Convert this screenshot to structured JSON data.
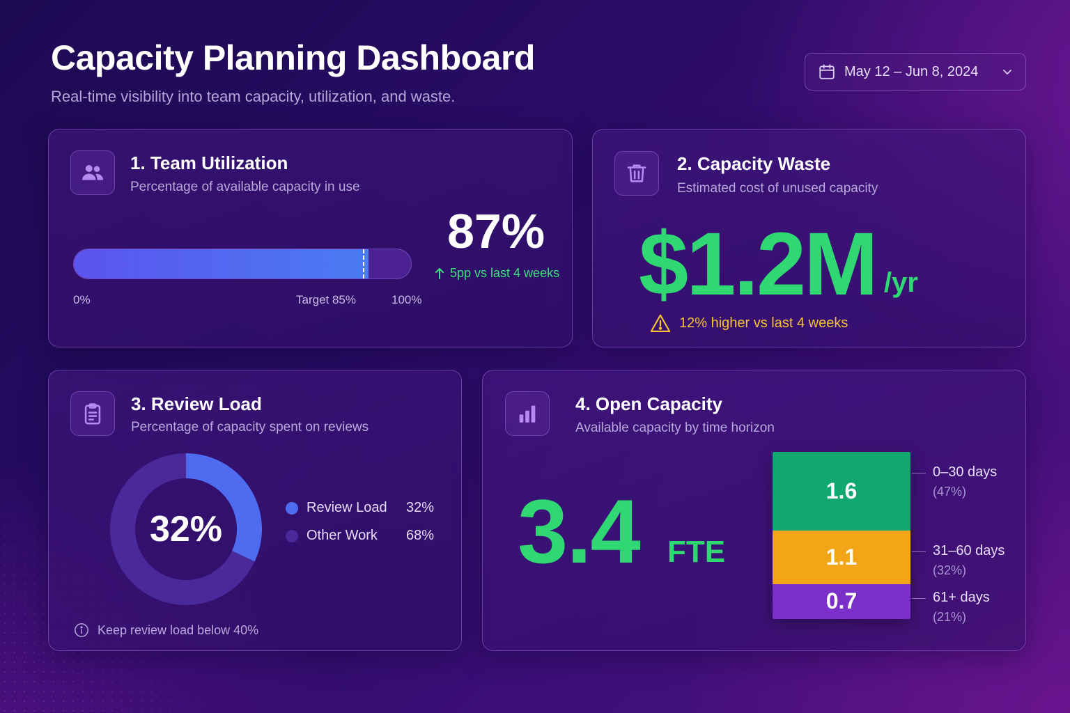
{
  "header": {
    "title": "Capacity Planning Dashboard",
    "subtitle": "Real-time visibility into team capacity, utilization, and waste.",
    "date_range": "May 12 – Jun 8, 2024"
  },
  "cards": {
    "utilization": {
      "title": "1. Team Utilization",
      "subtitle": "Percentage of available capacity in use",
      "value": "87%",
      "fill_fraction": 0.87,
      "target_fraction": 0.85,
      "axis_start": "0%",
      "axis_target": "Target 85%",
      "axis_end": "100%",
      "trend": "5pp vs last 4 weeks",
      "trend_color": "#3ee07c"
    },
    "waste": {
      "title": "2. Capacity Waste",
      "subtitle": "Estimated cost of unused capacity",
      "value": "$1.2M",
      "unit": "/yr",
      "warning": "12% higher vs last 4 weeks",
      "value_color": "#2fd873",
      "warning_color": "#f5c234"
    },
    "review": {
      "title": "3. Review Load",
      "subtitle": "Percentage of capacity spent on reviews",
      "center_value": "32%",
      "legend": [
        {
          "name": "Review Load",
          "value": "32%",
          "fraction": 0.32,
          "color": "#4f6cf0"
        },
        {
          "name": "Other Work",
          "value": "68%",
          "fraction": 0.68,
          "color": "#4a2a9a"
        }
      ],
      "note": "Keep review load below 40%"
    },
    "open_capacity": {
      "title": "4. Open Capacity",
      "subtitle": "Available capacity by time horizon",
      "value": "3.4",
      "unit": "FTE",
      "segments": [
        {
          "value": "1.6",
          "label": "0–30 days",
          "pct": "(47%)",
          "fraction": 0.47,
          "color": "#10a870"
        },
        {
          "value": "1.1",
          "label": "31–60 days",
          "pct": "(32%)",
          "fraction": 0.32,
          "color": "#f2a516"
        },
        {
          "value": "0.7",
          "label": "61+ days",
          "pct": "(21%)",
          "fraction": 0.21,
          "color": "#7b2fc9"
        }
      ]
    }
  },
  "icons": {
    "date": "calendar-icon",
    "dropdown": "chevron-down-icon",
    "utilization": "users-icon",
    "waste": "trash-icon",
    "review": "clipboard-icon",
    "open_capacity": "bar-chart-icon",
    "trend": "arrow-up-icon",
    "warning": "warning-icon",
    "info": "info-icon"
  }
}
